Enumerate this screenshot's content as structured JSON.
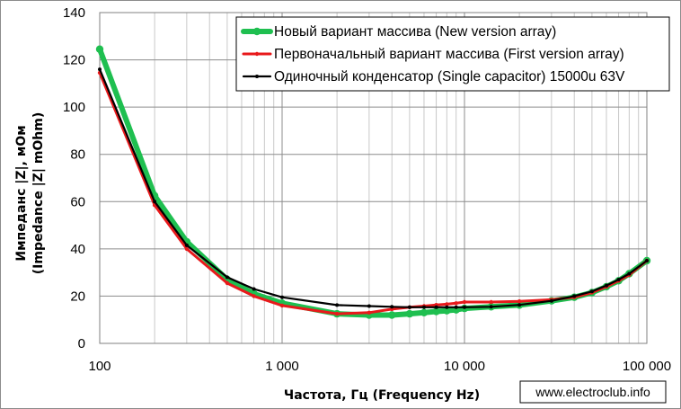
{
  "chart_data": {
    "type": "line",
    "x_scale": "log",
    "xlabel": "Частота, Гц (Frequency Hz)",
    "ylabel_lines": [
      "Импеданс |Z|, мОм",
      "(Impedance |Z| mOhm)"
    ],
    "xlim": [
      100,
      100000
    ],
    "ylim": [
      0,
      140
    ],
    "x_ticks": [
      100,
      1000,
      10000,
      100000
    ],
    "x_tick_labels": [
      "100",
      "1 000",
      "10 000",
      "100 000"
    ],
    "y_ticks": [
      0,
      20,
      40,
      60,
      80,
      100,
      120,
      140
    ],
    "y_tick_labels": [
      "0",
      "20",
      "40",
      "60",
      "80",
      "100",
      "120",
      "140"
    ],
    "grid": "major and minor (log decades)",
    "legend_position": "top-right",
    "credit": "www.electroclub.info",
    "series": [
      {
        "name": "Новый вариант массива (New version array)",
        "color": "#1fbf50",
        "x": [
          100,
          200,
          300,
          500,
          700,
          1000,
          2000,
          3000,
          4000,
          5000,
          6000,
          7000,
          8000,
          9000,
          10000,
          14000,
          20000,
          30000,
          40000,
          50000,
          60000,
          70000,
          80000,
          100000
        ],
        "y": [
          124.5,
          62.5,
          43,
          27,
          21,
          17,
          12.5,
          12,
          12,
          12.5,
          13,
          13.5,
          13.8,
          14.2,
          14.8,
          15.5,
          16.2,
          18,
          19.5,
          21.5,
          24,
          26.5,
          29.5,
          35
        ]
      },
      {
        "name": "Первоначальный вариант массива (First version array)",
        "color": "#e8191b",
        "x": [
          100,
          200,
          300,
          500,
          700,
          1000,
          2000,
          3000,
          4000,
          5000,
          6000,
          7000,
          8000,
          9000,
          10000,
          14000,
          20000,
          30000,
          40000,
          50000,
          60000,
          70000,
          80000,
          100000
        ],
        "y": [
          114.5,
          58.5,
          40,
          25.5,
          20,
          16,
          12.5,
          13,
          14.5,
          15.3,
          15.8,
          16.3,
          16.6,
          17,
          17.5,
          17.5,
          17.8,
          18.5,
          19.5,
          21.5,
          24,
          26.5,
          29,
          35
        ]
      },
      {
        "name": "Одиночный конденсатор (Single capacitor) 15000u 63V",
        "color": "#000000",
        "x": [
          100,
          200,
          300,
          500,
          700,
          1000,
          2000,
          3000,
          4000,
          5000,
          6000,
          7000,
          8000,
          9000,
          10000,
          14000,
          20000,
          30000,
          40000,
          50000,
          60000,
          70000,
          80000,
          100000
        ],
        "y": [
          116,
          60,
          41.5,
          28,
          23,
          19.5,
          16.2,
          15.8,
          15.5,
          15.3,
          15.3,
          15.3,
          15.3,
          15.3,
          15.3,
          15.5,
          16.3,
          18,
          20,
          22,
          24.5,
          27,
          29.5,
          35
        ]
      }
    ]
  }
}
